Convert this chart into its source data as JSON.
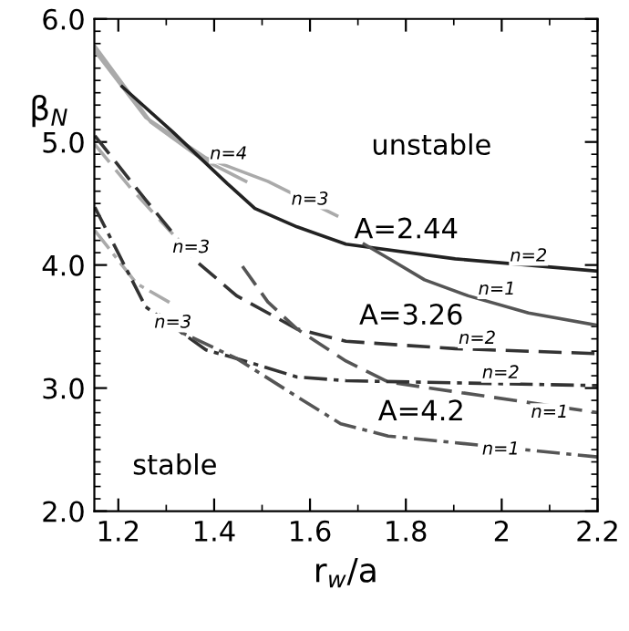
{
  "chart_data": {
    "type": "line",
    "xlabel": "r$_{w}$/a",
    "ylabel": "β$_{N}$",
    "xlim": [
      1.15,
      2.2
    ],
    "ylim": [
      2,
      6
    ],
    "xticks": [
      1.2,
      1.4,
      1.6,
      1.8,
      2,
      2.2
    ],
    "yticks": [
      {
        "value": 2,
        "label": "2.0"
      },
      {
        "value": 3,
        "label": "3.0"
      },
      {
        "value": 4,
        "label": "4.0"
      },
      {
        "value": 5,
        "label": "5.0"
      },
      {
        "value": 6,
        "label": "6.0"
      }
    ],
    "grid": false,
    "legend": false,
    "marker": "none",
    "series": [
      {
        "color": "#aaaaaa",
        "line_style": "solid",
        "x": [
          1.151,
          1.257,
          1.383,
          1.512,
          1.656
        ],
        "values": [
          5.74,
          5.2,
          4.87,
          4.68,
          4.4
        ]
      },
      {
        "color": "#aaaaaa",
        "line_style": "solid",
        "x": [
          1.151,
          1.268,
          1.371,
          1.466
        ],
        "values": [
          5.78,
          5.16,
          4.87,
          4.68
        ]
      },
      {
        "color": "#222222",
        "line_style": "solid",
        "x": [
          1.208,
          1.314,
          1.428,
          1.485,
          1.573,
          1.675,
          1.903,
          2.2
        ],
        "values": [
          5.45,
          5.08,
          4.66,
          4.46,
          4.31,
          4.17,
          4.05,
          3.95
        ]
      },
      {
        "color": "#555555",
        "line_style": "solid",
        "x": [
          1.713,
          1.77,
          1.839,
          1.93,
          2.056,
          2.2
        ],
        "values": [
          4.17,
          4.04,
          3.88,
          3.75,
          3.61,
          3.51
        ]
      },
      {
        "color": "#aaaaaa",
        "line_style": "dashed",
        "x": [
          1.151,
          1.227,
          1.314
        ],
        "values": [
          4.98,
          4.62,
          4.25
        ]
      },
      {
        "color": "#333333",
        "line_style": "dashed",
        "x": [
          1.151,
          1.257,
          1.36,
          1.447,
          1.573,
          1.675,
          1.903,
          2.2
        ],
        "values": [
          5.05,
          4.53,
          4.04,
          3.75,
          3.48,
          3.38,
          3.32,
          3.28
        ]
      },
      {
        "color": "#555555",
        "line_style": "dashed",
        "x": [
          1.459,
          1.512,
          1.573,
          1.675,
          1.763,
          2.2
        ],
        "values": [
          3.99,
          3.7,
          3.48,
          3.22,
          3.05,
          2.8
        ]
      },
      {
        "color": "#aaaaaa",
        "line_style": "dashdot",
        "x": [
          1.151,
          1.238,
          1.314
        ],
        "values": [
          4.28,
          3.85,
          3.68
        ]
      },
      {
        "color": "#333333",
        "line_style": "dashdot",
        "x": [
          1.151,
          1.257,
          1.383,
          1.447,
          1.573,
          1.675,
          2.2
        ],
        "values": [
          4.47,
          3.66,
          3.31,
          3.24,
          3.09,
          3.06,
          3.02
        ]
      },
      {
        "color": "#555555",
        "line_style": "dashdot",
        "x": [
          1.284,
          1.333,
          1.447,
          1.573,
          1.664,
          1.763,
          2.2
        ],
        "values": [
          3.6,
          3.45,
          3.24,
          2.93,
          2.71,
          2.61,
          2.44
        ]
      }
    ],
    "annotations": [
      "unstable",
      "stable",
      "A=2.44",
      "A=3.26",
      "A=4.2",
      {
        "text": "n=4",
        "x": 1.43,
        "y": 4.9
      },
      {
        "text": "n=3",
        "x": 1.6,
        "y": 4.53
      },
      {
        "text": "n=2",
        "x": 2.056,
        "y": 4.07
      },
      {
        "text": "n=1",
        "x": 1.99,
        "y": 3.8
      },
      {
        "text": "n=3",
        "x": 1.352,
        "y": 4.14
      },
      {
        "text": "n=2",
        "x": 1.949,
        "y": 3.4
      },
      {
        "text": "n=2",
        "x": 1.998,
        "y": 3.12
      },
      {
        "text": "n=1",
        "x": 2.1,
        "y": 2.8
      },
      {
        "text": "n=1",
        "x": 1.998,
        "y": 2.5
      },
      {
        "text": "n=3",
        "x": 1.314,
        "y": 3.53
      }
    ]
  }
}
